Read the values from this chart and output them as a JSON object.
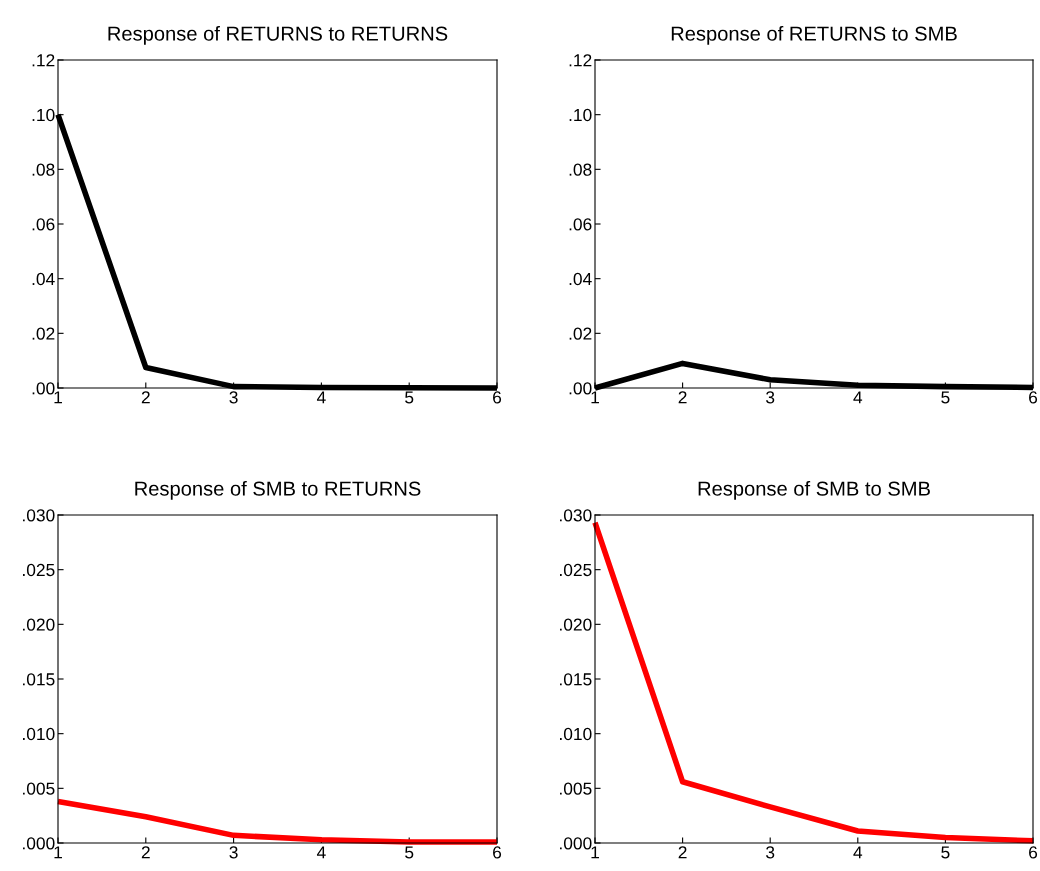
{
  "chart_data": [
    {
      "type": "line",
      "title": "Response of RETURNS to RETURNS",
      "x": [
        1,
        2,
        3,
        4,
        5,
        6
      ],
      "series": [
        {
          "color": "#000000",
          "values": [
            0.1,
            0.0075,
            0.0005,
            0.0002,
            0.0001,
            0.0
          ]
        }
      ],
      "xlim": [
        1,
        6
      ],
      "xticks": [
        1,
        2,
        3,
        4,
        5,
        6
      ],
      "ylim": [
        0,
        0.12
      ],
      "yticks": [
        {
          "value": 0,
          "label": ".00"
        },
        {
          "value": 0.02,
          "label": ".02"
        },
        {
          "value": 0.04,
          "label": ".04"
        },
        {
          "value": 0.06,
          "label": ".06"
        },
        {
          "value": 0.08,
          "label": ".08"
        },
        {
          "value": 0.1,
          "label": ".10"
        },
        {
          "value": 0.12,
          "label": ".12"
        }
      ],
      "grid": false,
      "legend": false
    },
    {
      "type": "line",
      "title": "Response of RETURNS to SMB",
      "x": [
        1,
        2,
        3,
        4,
        5,
        6
      ],
      "series": [
        {
          "color": "#000000",
          "values": [
            0.0,
            0.009,
            0.003,
            0.001,
            0.0005,
            0.0002
          ]
        }
      ],
      "xlim": [
        1,
        6
      ],
      "xticks": [
        1,
        2,
        3,
        4,
        5,
        6
      ],
      "ylim": [
        0,
        0.12
      ],
      "yticks": [
        {
          "value": 0,
          "label": ".00"
        },
        {
          "value": 0.02,
          "label": ".02"
        },
        {
          "value": 0.04,
          "label": ".04"
        },
        {
          "value": 0.06,
          "label": ".06"
        },
        {
          "value": 0.08,
          "label": ".08"
        },
        {
          "value": 0.1,
          "label": ".10"
        },
        {
          "value": 0.12,
          "label": ".12"
        }
      ],
      "grid": false,
      "legend": false
    },
    {
      "type": "line",
      "title": "Response of SMB to RETURNS",
      "x": [
        1,
        2,
        3,
        4,
        5,
        6
      ],
      "series": [
        {
          "color": "#ff0000",
          "values": [
            0.0038,
            0.0024,
            0.0007,
            0.0003,
            0.0001,
            0.0001
          ]
        }
      ],
      "xlim": [
        1,
        6
      ],
      "xticks": [
        1,
        2,
        3,
        4,
        5,
        6
      ],
      "ylim": [
        0,
        0.03
      ],
      "yticks": [
        {
          "value": 0,
          "label": ".000"
        },
        {
          "value": 0.005,
          "label": ".005"
        },
        {
          "value": 0.01,
          "label": ".010"
        },
        {
          "value": 0.015,
          "label": ".015"
        },
        {
          "value": 0.02,
          "label": ".020"
        },
        {
          "value": 0.025,
          "label": ".025"
        },
        {
          "value": 0.03,
          "label": ".030"
        }
      ],
      "grid": false,
      "legend": false
    },
    {
      "type": "line",
      "title": "Response of SMB to SMB",
      "x": [
        1,
        2,
        3,
        4,
        5,
        6
      ],
      "series": [
        {
          "color": "#ff0000",
          "values": [
            0.0293,
            0.0056,
            0.0033,
            0.0011,
            0.0005,
            0.0002
          ]
        }
      ],
      "xlim": [
        1,
        6
      ],
      "xticks": [
        1,
        2,
        3,
        4,
        5,
        6
      ],
      "ylim": [
        0,
        0.03
      ],
      "yticks": [
        {
          "value": 0,
          "label": ".000"
        },
        {
          "value": 0.005,
          "label": ".005"
        },
        {
          "value": 0.01,
          "label": ".010"
        },
        {
          "value": 0.015,
          "label": ".015"
        },
        {
          "value": 0.02,
          "label": ".020"
        },
        {
          "value": 0.025,
          "label": ".025"
        },
        {
          "value": 0.03,
          "label": ".030"
        }
      ],
      "grid": false,
      "legend": false
    }
  ]
}
